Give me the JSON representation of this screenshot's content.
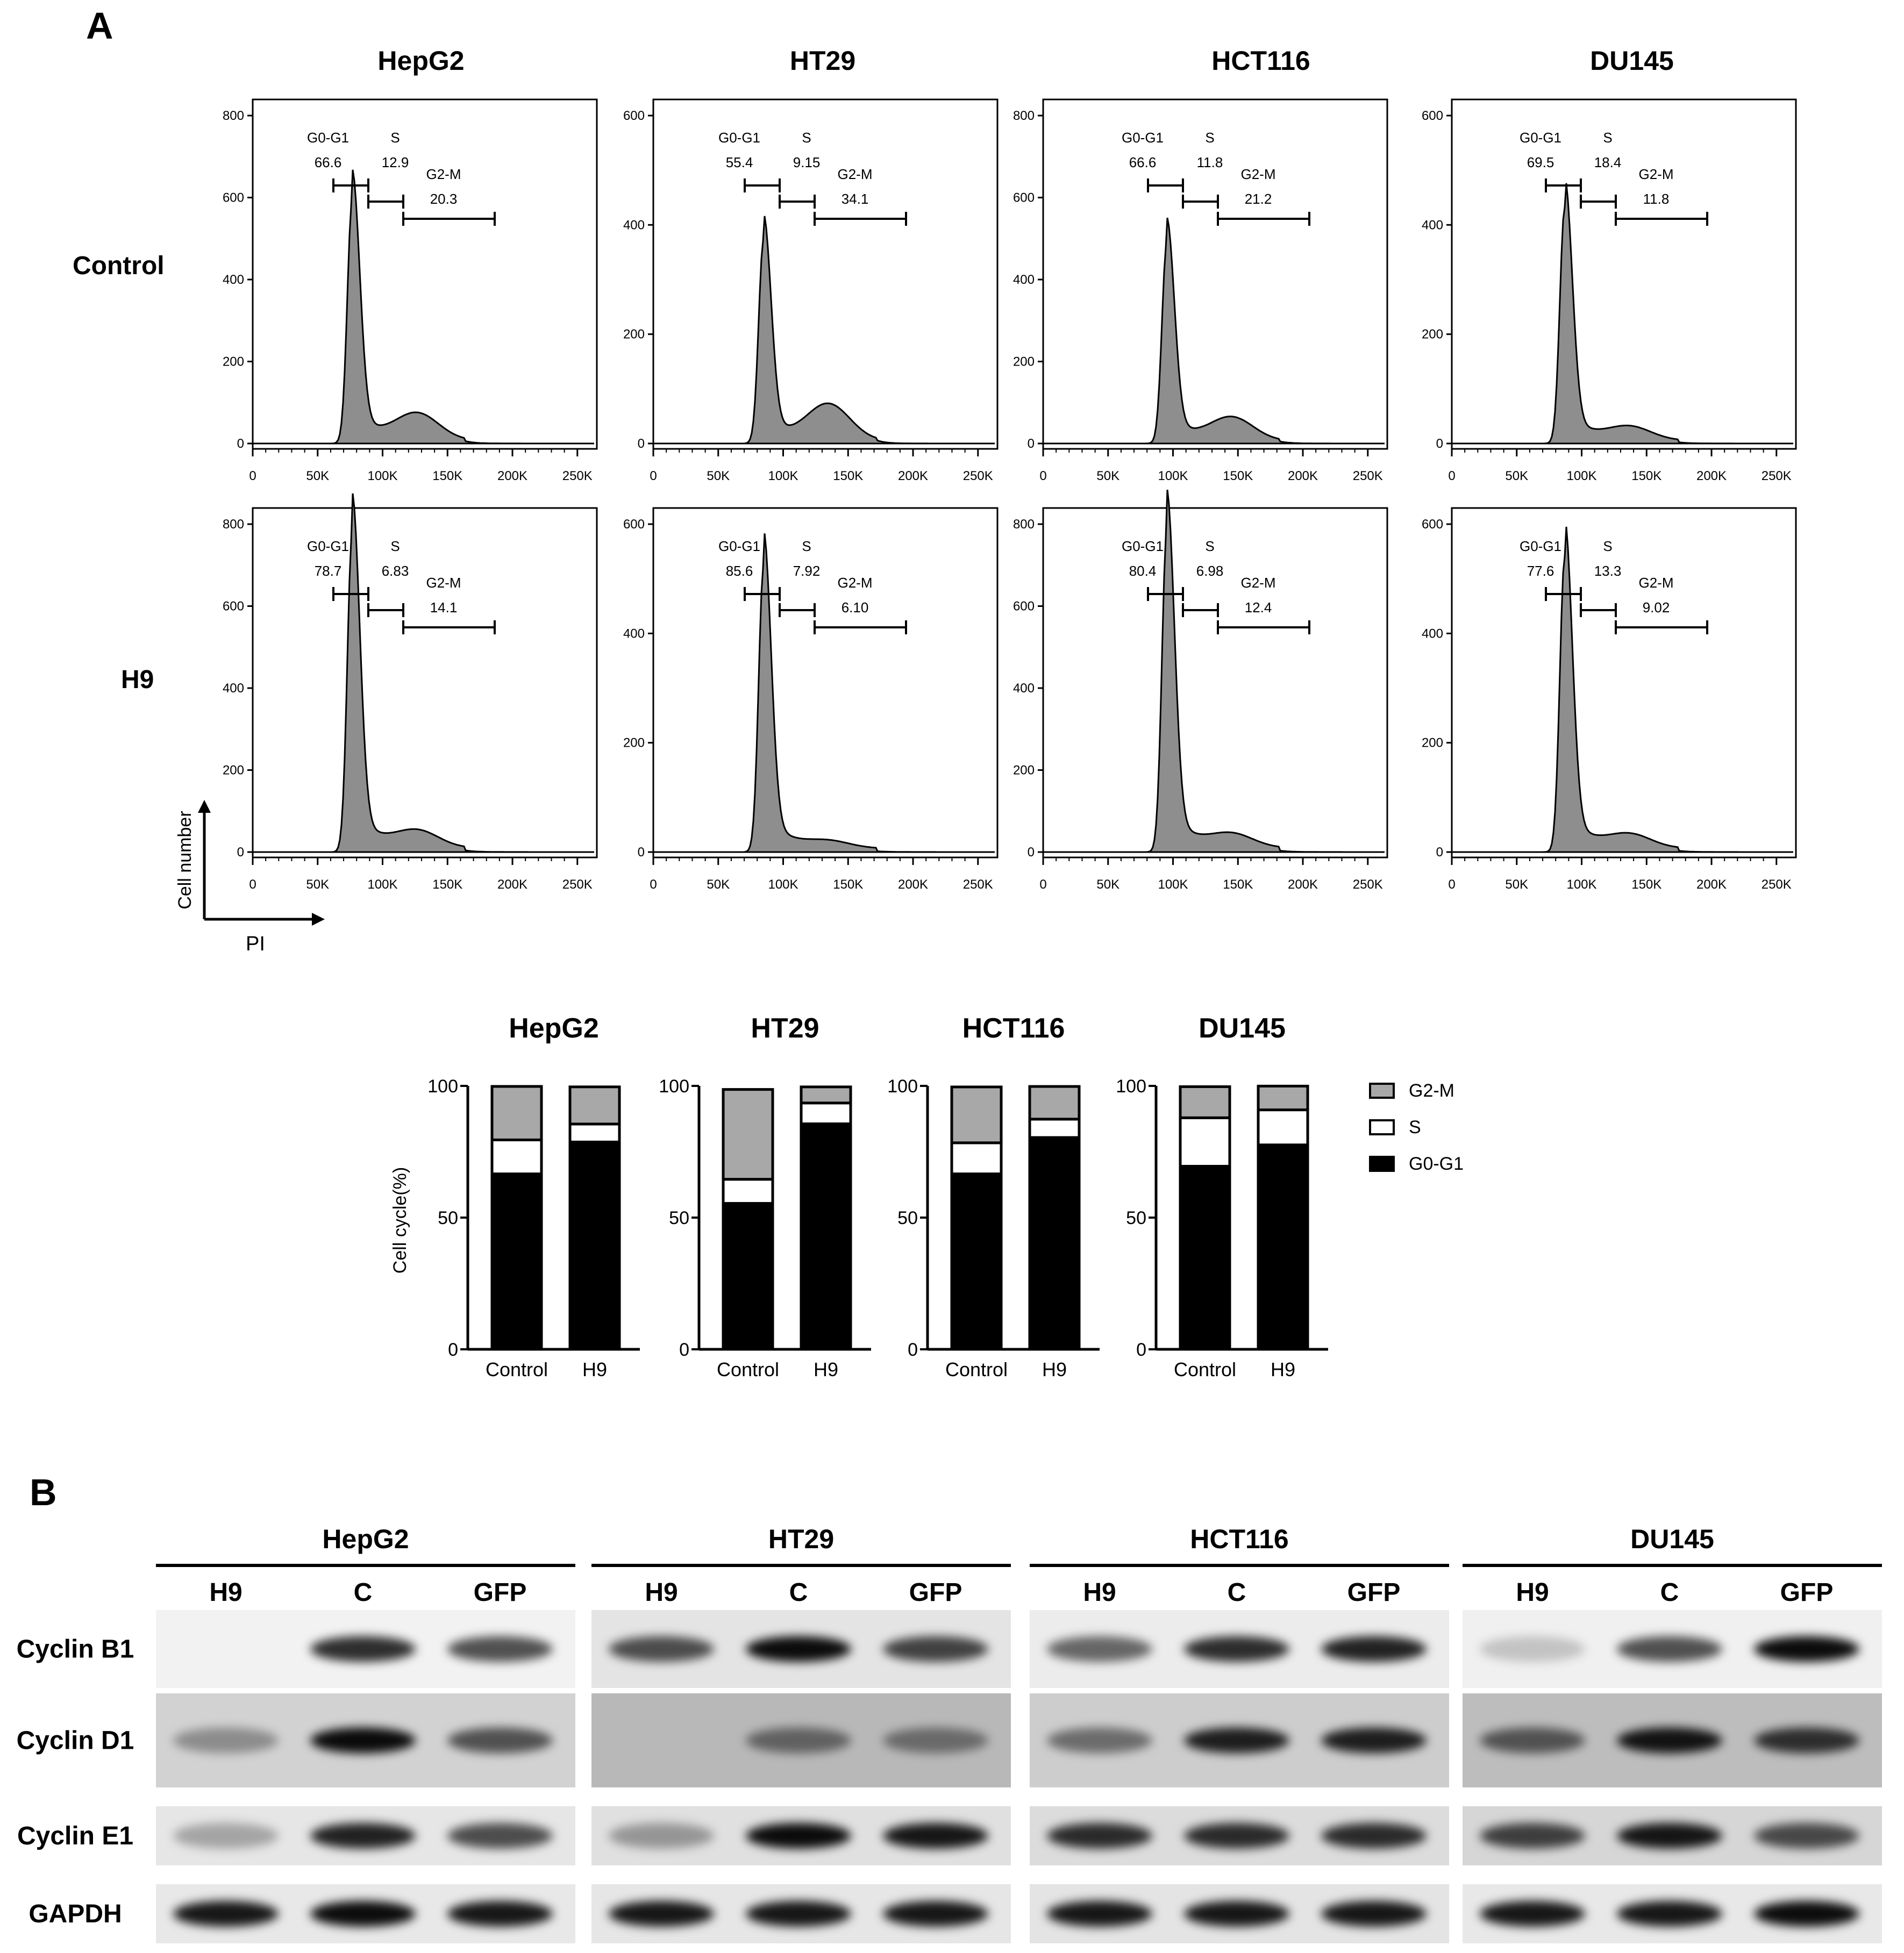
{
  "panel_labels": {
    "a": "A",
    "b": "B"
  },
  "cell_lines": [
    "HepG2",
    "HT29",
    "HCT116",
    "DU145"
  ],
  "row_labels": [
    "Control",
    "H9"
  ],
  "axis_labels": {
    "y": "Cell number",
    "x": "PI"
  },
  "histogram_x_ticks": [
    "0",
    "50K",
    "100K",
    "150K",
    "200K",
    "250K"
  ],
  "histogram_y_ticks": {
    "HepG2": [
      "0",
      "200",
      "400",
      "600",
      "800"
    ],
    "HT29": [
      "0",
      "200",
      "400",
      "600"
    ],
    "HCT116": [
      "0",
      "200",
      "400",
      "600",
      "800"
    ],
    "DU145": [
      "0",
      "200",
      "400",
      "600"
    ]
  },
  "gate_labels": [
    "G0-G1",
    "S",
    "G2-M"
  ],
  "gate_values": {
    "Control": {
      "HepG2": [
        "66.6",
        "12.9",
        "20.3"
      ],
      "HT29": [
        "55.4",
        "9.15",
        "34.1"
      ],
      "HCT116": [
        "66.6",
        "11.8",
        "21.2"
      ],
      "DU145": [
        "69.5",
        "18.4",
        "11.8"
      ]
    },
    "H9": {
      "HepG2": [
        "78.7",
        "6.83",
        "14.1"
      ],
      "HT29": [
        "85.6",
        "7.92",
        "6.10"
      ],
      "HCT116": [
        "80.4",
        "6.98",
        "12.4"
      ],
      "DU145": [
        "77.6",
        "13.3",
        "9.02"
      ]
    }
  },
  "chart_data": {
    "type": "bar",
    "stacked": true,
    "ylabel": "Cell cycle(%)",
    "ylim": [
      0,
      100
    ],
    "y_ticks": [
      "0",
      "50",
      "100"
    ],
    "categories": [
      "Control",
      "H9"
    ],
    "legend": [
      "G2-M",
      "S",
      "G0-G1"
    ],
    "colors": {
      "G0-G1": "#000000",
      "S": "#ffffff",
      "G2-M": "#a8a8a8"
    },
    "panels": [
      {
        "title": "HepG2",
        "series": [
          {
            "name": "G0-G1",
            "values": [
              66.6,
              78.7
            ]
          },
          {
            "name": "S",
            "values": [
              12.9,
              6.83
            ]
          },
          {
            "name": "G2-M",
            "values": [
              20.3,
              14.1
            ]
          }
        ]
      },
      {
        "title": "HT29",
        "series": [
          {
            "name": "G0-G1",
            "values": [
              55.4,
              85.6
            ]
          },
          {
            "name": "S",
            "values": [
              9.15,
              7.92
            ]
          },
          {
            "name": "G2-M",
            "values": [
              34.1,
              6.1
            ]
          }
        ]
      },
      {
        "title": "HCT116",
        "series": [
          {
            "name": "G0-G1",
            "values": [
              66.6,
              80.4
            ]
          },
          {
            "name": "S",
            "values": [
              11.8,
              6.98
            ]
          },
          {
            "name": "G2-M",
            "values": [
              21.2,
              12.4
            ]
          }
        ]
      },
      {
        "title": "DU145",
        "series": [
          {
            "name": "G0-G1",
            "values": [
              69.5,
              77.6
            ]
          },
          {
            "name": "S",
            "values": [
              18.4,
              13.3
            ]
          },
          {
            "name": "G2-M",
            "values": [
              11.8,
              9.02
            ]
          }
        ]
      }
    ]
  },
  "western": {
    "lanes": [
      "H9",
      "C",
      "GFP"
    ],
    "proteins": [
      "Cyclin B1",
      "Cyclin D1",
      "Cyclin E1",
      "GAPDH"
    ]
  }
}
